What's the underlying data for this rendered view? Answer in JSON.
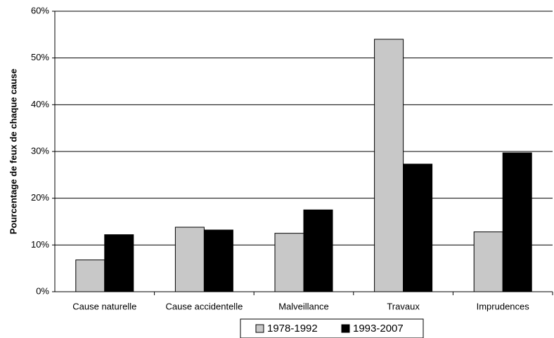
{
  "chart_data": {
    "type": "bar",
    "y_label": "Pourcentage de feux de chaque cause",
    "categories": [
      "Cause naturelle",
      "Cause accidentelle",
      "Malveillance",
      "Travaux",
      "Imprudences"
    ],
    "series": [
      {
        "name": "1978-1992",
        "color": "#c8c8c8",
        "values": [
          6.8,
          13.8,
          12.5,
          54,
          12.8
        ]
      },
      {
        "name": "1993-2007",
        "color": "#000000",
        "values": [
          12.2,
          13.2,
          17.5,
          27.3,
          29.7
        ]
      }
    ],
    "ylim": [
      0,
      60
    ],
    "yticks": [
      {
        "value": 0,
        "label": "0%"
      },
      {
        "value": 10,
        "label": "10%"
      },
      {
        "value": 20,
        "label": "20%"
      },
      {
        "value": 30,
        "label": "30%"
      },
      {
        "value": 40,
        "label": "40%"
      },
      {
        "value": 50,
        "label": "50%"
      },
      {
        "value": 60,
        "label": "60%"
      }
    ],
    "grid": true,
    "legend": "bottom"
  }
}
